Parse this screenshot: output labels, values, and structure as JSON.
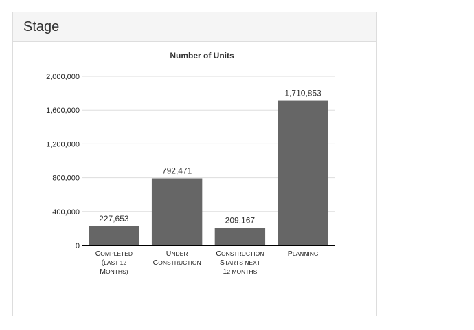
{
  "panel": {
    "title": "Stage"
  },
  "chart_data": {
    "type": "bar",
    "title": "Number of Units",
    "xlabel": "",
    "ylabel": "",
    "categories": [
      [
        "Completed",
        "(last 12",
        "months)"
      ],
      [
        "Under",
        "Construction"
      ],
      [
        "Construction",
        "starts next",
        "12 months"
      ],
      [
        "Planning"
      ]
    ],
    "values": [
      227653,
      792471,
      209167,
      1710853
    ],
    "value_labels": [
      "227,653",
      "792,471",
      "209,167",
      "1,710,853"
    ],
    "ylim": [
      0,
      2000000
    ],
    "yticks": [
      0,
      400000,
      800000,
      1200000,
      1600000,
      2000000
    ],
    "ytick_labels": [
      "0",
      "400,000",
      "800,000",
      "1,200,000",
      "1,600,000",
      "2,000,000"
    ],
    "grid": true,
    "bar_color": "#666666",
    "grid_color": "#dddddd",
    "axis_color": "#000000"
  }
}
